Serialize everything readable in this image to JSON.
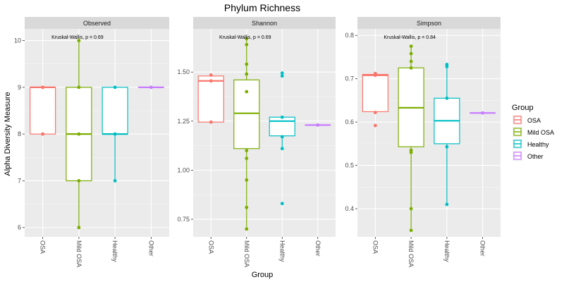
{
  "chart_data": {
    "type": "box",
    "title": "Phylum Richness",
    "xlabel": "Group",
    "ylabel": "Alpha Diversity Measure",
    "legend": {
      "title": "Group",
      "position": "right",
      "entries": [
        "OSA",
        "Mild OSA",
        "Healthy",
        "Other"
      ]
    },
    "categories": [
      "OSA",
      "Mild OSA",
      "Healthy",
      "Other"
    ],
    "colors": {
      "OSA": "#F8766D",
      "Mild OSA": "#7CAE00",
      "Healthy": "#00BFC4",
      "Other": "#C77CFF"
    },
    "panels": [
      {
        "strip": "Observed",
        "annotation": "Kruskal-Wallis, p = 0.69",
        "ylim": [
          5.8,
          10.25
        ],
        "yticks": [
          6,
          7,
          8,
          9,
          10
        ],
        "tick_labels": [
          "6",
          "7",
          "8",
          "9",
          "10"
        ],
        "boxes": [
          {
            "group": "OSA",
            "q1": 8,
            "median": 9,
            "q3": 9,
            "low": 8,
            "high": 9
          },
          {
            "group": "Mild OSA",
            "q1": 7,
            "median": 8,
            "q3": 9,
            "low": 6,
            "high": 10
          },
          {
            "group": "Healthy",
            "q1": 8,
            "median": 8,
            "q3": 9,
            "low": 7,
            "high": 9
          },
          {
            "group": "Other",
            "q1": 9,
            "median": 9,
            "q3": 9,
            "low": 9,
            "high": 9
          }
        ],
        "points": [
          {
            "group": "OSA",
            "values": [
              9,
              9,
              8,
              8
            ]
          },
          {
            "group": "Mild OSA",
            "values": [
              10,
              9,
              8,
              7,
              6
            ]
          },
          {
            "group": "Healthy",
            "values": [
              9,
              8,
              8,
              7
            ]
          },
          {
            "group": "Other",
            "values": [
              9
            ]
          }
        ]
      },
      {
        "strip": "Shannon",
        "annotation": "Kruskal-Wallis, p = 0.69",
        "ylim": [
          0.66,
          1.72
        ],
        "yticks": [
          0.75,
          1.0,
          1.25,
          1.5
        ],
        "tick_labels": [
          "0.75",
          "1.00",
          "1.25",
          "1.50"
        ],
        "boxes": [
          {
            "group": "OSA",
            "q1": 1.245,
            "median": 1.455,
            "q3": 1.48,
            "low": 1.24,
            "high": 1.485
          },
          {
            "group": "Mild OSA",
            "q1": 1.11,
            "median": 1.29,
            "q3": 1.46,
            "low": 0.7,
            "high": 1.67
          },
          {
            "group": "Healthy",
            "q1": 1.175,
            "median": 1.25,
            "q3": 1.27,
            "low": 1.11,
            "high": 1.27
          },
          {
            "group": "Other",
            "q1": 1.23,
            "median": 1.23,
            "q3": 1.23,
            "low": 1.23,
            "high": 1.23
          }
        ],
        "points": [
          {
            "group": "OSA",
            "values": [
              1.485,
              1.455,
              1.245
            ]
          },
          {
            "group": "Mild OSA",
            "values": [
              1.67,
              1.64,
              1.54,
              1.49,
              1.4,
              1.1,
              1.06,
              0.95,
              0.81,
              0.7
            ]
          },
          {
            "group": "Healthy",
            "values": [
              1.495,
              1.48,
              1.27,
              1.17,
              1.11,
              0.83
            ]
          },
          {
            "group": "Other",
            "values": [
              1.23
            ]
          }
        ]
      },
      {
        "strip": "Simpson",
        "annotation": "Kruskal-Wallis, p = 0.84",
        "ylim": [
          0.335,
          0.815
        ],
        "yticks": [
          0.4,
          0.5,
          0.6,
          0.7,
          0.8
        ],
        "tick_labels": [
          "0.4",
          "0.5",
          "0.6",
          "0.7",
          "0.8"
        ],
        "boxes": [
          {
            "group": "OSA",
            "q1": 0.624,
            "median": 0.708,
            "q3": 0.71,
            "low": 0.622,
            "high": 0.712
          },
          {
            "group": "Mild OSA",
            "q1": 0.543,
            "median": 0.633,
            "q3": 0.725,
            "low": 0.35,
            "high": 0.775
          },
          {
            "group": "Healthy",
            "q1": 0.55,
            "median": 0.603,
            "q3": 0.655,
            "low": 0.41,
            "high": 0.733
          },
          {
            "group": "Other",
            "q1": 0.621,
            "median": 0.621,
            "q3": 0.621,
            "low": 0.621,
            "high": 0.621
          }
        ],
        "points": [
          {
            "group": "OSA",
            "values": [
              0.712,
              0.708,
              0.622,
              0.592
            ]
          },
          {
            "group": "Mild OSA",
            "values": [
              0.775,
              0.758,
              0.74,
              0.725,
              0.535,
              0.53,
              0.4,
              0.35
            ]
          },
          {
            "group": "Healthy",
            "values": [
              0.733,
              0.728,
              0.655,
              0.543,
              0.41
            ]
          },
          {
            "group": "Other",
            "values": [
              0.621
            ]
          }
        ]
      }
    ]
  }
}
